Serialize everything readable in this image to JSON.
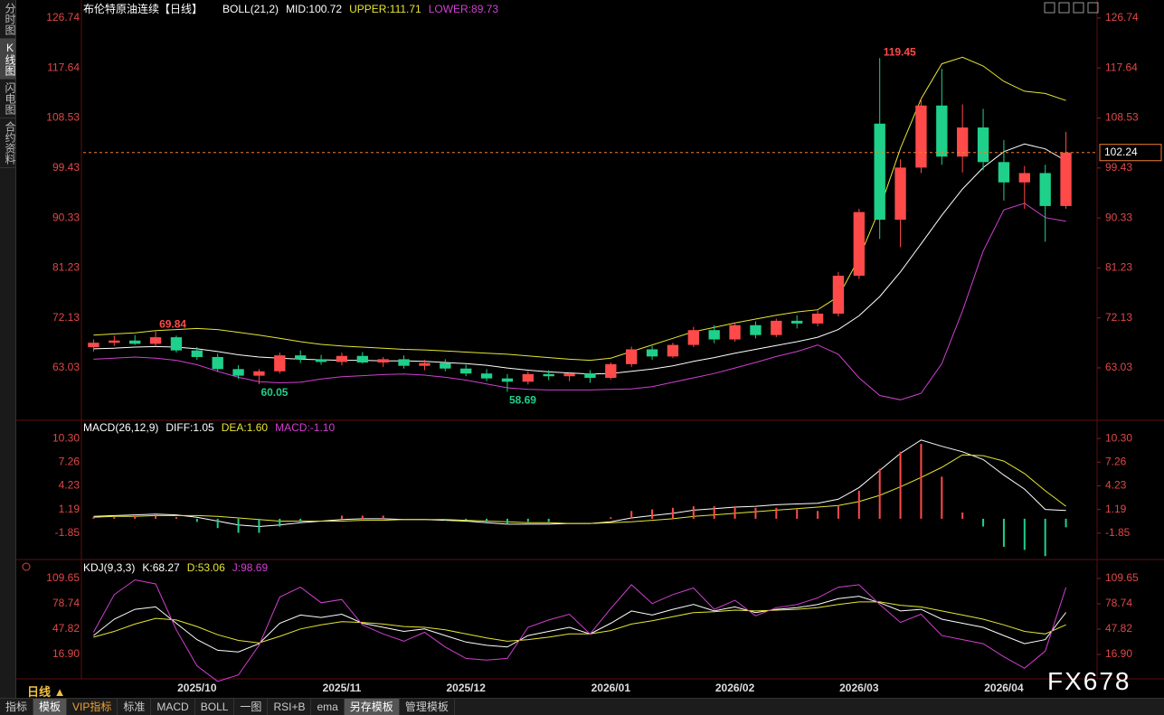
{
  "ui": {
    "side_tabs": [
      "分时图",
      "K线图",
      "闪电图",
      "合约资料"
    ],
    "active_side_tab": 1,
    "period": "日线 ▲",
    "bottom_tabs": [
      "指标",
      "模板",
      "VIP指标",
      "标准",
      "MACD",
      "BOLL",
      "一图",
      "RSI+B",
      "ema",
      "另存模板",
      "管理模板"
    ],
    "active_bottom_tabs": [
      1,
      9
    ],
    "watermark": "FX678"
  },
  "chart_data": [
    {
      "type": "candlestick",
      "title": "布伦特原油连续【日线】",
      "indicator": "BOLL(21,2)",
      "categories": [
        null,
        null,
        null,
        null,
        null,
        "2025/10",
        null,
        null,
        null,
        null,
        null,
        null,
        "2025/11",
        null,
        null,
        null,
        null,
        null,
        "2025/12",
        null,
        null,
        null,
        null,
        null,
        null,
        "2026/01",
        null,
        null,
        null,
        null,
        null,
        "2026/02",
        null,
        null,
        null,
        null,
        null,
        "2026/03",
        null,
        null,
        null,
        null,
        null,
        null,
        "2026/04",
        null,
        null,
        null
      ],
      "open": [
        66.8,
        67.6,
        68.0,
        67.4,
        68.6,
        66.2,
        65.0,
        62.8,
        61.6,
        62.4,
        65.3,
        64.6,
        64.1,
        65.2,
        64.0,
        64.6,
        63.4,
        63.9,
        62.9,
        62.0,
        61.1,
        60.5,
        61.9,
        61.5,
        62.0,
        61.2,
        63.7,
        66.4,
        65.1,
        67.2,
        69.9,
        68.2,
        70.8,
        69.0,
        71.6,
        71.1,
        72.9,
        79.8,
        107.5,
        90.0,
        99.5,
        110.8,
        101.5,
        106.8,
        100.5,
        96.8,
        98.5,
        92.5
      ],
      "high": [
        68.2,
        68.9,
        69.0,
        69.84,
        68.9,
        66.8,
        65.6,
        63.5,
        62.8,
        65.8,
        66.2,
        65.4,
        65.8,
        65.9,
        65.0,
        65.3,
        64.5,
        64.6,
        63.6,
        62.8,
        61.9,
        62.4,
        62.6,
        62.3,
        62.6,
        64.0,
        66.9,
        67.0,
        67.6,
        70.5,
        70.8,
        71.3,
        71.5,
        72.0,
        72.6,
        73.5,
        80.5,
        92.0,
        119.45,
        101.0,
        112.0,
        117.5,
        111.0,
        110.2,
        104.5,
        99.8,
        100.0,
        106.0
      ],
      "low": [
        66.0,
        67.0,
        67.2,
        66.9,
        65.8,
        64.5,
        62.3,
        61.0,
        60.05,
        62.0,
        63.9,
        63.6,
        63.5,
        63.8,
        63.2,
        62.9,
        62.6,
        62.4,
        61.5,
        60.6,
        58.69,
        60.0,
        60.8,
        60.6,
        60.3,
        60.9,
        63.2,
        64.5,
        64.8,
        66.8,
        67.5,
        67.8,
        68.4,
        68.6,
        70.2,
        70.6,
        72.4,
        79.2,
        86.5,
        85.0,
        98.5,
        100.0,
        98.6,
        99.0,
        93.5,
        92.0,
        86.0,
        92.0
      ],
      "close": [
        67.6,
        68.0,
        67.4,
        68.6,
        66.2,
        65.0,
        62.8,
        61.6,
        62.4,
        65.3,
        64.6,
        64.1,
        65.2,
        64.0,
        64.6,
        63.4,
        63.9,
        62.9,
        62.0,
        61.1,
        60.5,
        61.9,
        61.5,
        62.0,
        61.2,
        63.7,
        66.4,
        65.1,
        67.2,
        69.9,
        68.2,
        70.8,
        69.0,
        71.6,
        71.1,
        72.9,
        79.8,
        91.4,
        90.0,
        99.5,
        110.8,
        101.5,
        106.8,
        100.5,
        96.8,
        98.5,
        92.5,
        102.24
      ],
      "colors": {
        "up": "#ff4a4a",
        "down": "#1fd08a"
      },
      "series": [
        {
          "name": "MID:100.72",
          "color": "#ffffff",
          "values": [
            66.5,
            66.6,
            66.8,
            66.9,
            66.8,
            66.5,
            66.0,
            65.4,
            65.0,
            64.8,
            64.6,
            64.5,
            64.4,
            64.4,
            64.3,
            64.3,
            64.2,
            64.0,
            63.8,
            63.5,
            63.0,
            62.6,
            62.3,
            62.1,
            61.9,
            62.0,
            62.4,
            62.8,
            63.4,
            64.2,
            64.9,
            65.7,
            66.4,
            67.1,
            67.8,
            68.6,
            70.0,
            72.5,
            76.0,
            80.5,
            85.6,
            90.8,
            95.6,
            99.5,
            102.4,
            103.8,
            102.9,
            100.72
          ]
        },
        {
          "name": "UPPER:111.71",
          "color": "#e6e632",
          "values": [
            69.0,
            69.2,
            69.4,
            69.8,
            70.0,
            70.2,
            70.0,
            69.5,
            69.0,
            68.4,
            67.8,
            67.3,
            67.0,
            66.8,
            66.6,
            66.4,
            66.3,
            66.1,
            65.9,
            65.7,
            65.5,
            65.2,
            64.9,
            64.6,
            64.4,
            64.8,
            66.0,
            67.2,
            68.4,
            69.6,
            70.4,
            71.2,
            71.9,
            72.6,
            73.2,
            73.6,
            76.0,
            83.0,
            92.0,
            103.0,
            112.0,
            118.4,
            119.6,
            118.0,
            115.2,
            113.4,
            113.0,
            111.71
          ]
        },
        {
          "name": "LOWER:89.73",
          "color": "#d040d0",
          "values": [
            64.6,
            64.8,
            65.0,
            64.8,
            64.4,
            63.6,
            62.4,
            61.3,
            60.5,
            60.3,
            60.4,
            61.0,
            61.4,
            61.6,
            61.8,
            61.9,
            61.7,
            61.3,
            60.8,
            60.1,
            59.4,
            59.1,
            59.0,
            59.0,
            59.0,
            59.1,
            59.2,
            59.6,
            60.4,
            61.2,
            62.0,
            63.0,
            64.0,
            65.1,
            66.0,
            67.2,
            65.5,
            61.2,
            58.0,
            57.2,
            58.4,
            63.8,
            73.4,
            84.3,
            91.8,
            93.0,
            90.4,
            89.73
          ]
        }
      ],
      "labeled_highs": [
        3,
        38
      ],
      "labeled_lows": [
        8,
        20
      ],
      "last_price_line": true,
      "ylim": [
        53.8,
        128.7
      ],
      "yticks": [
        63.03,
        72.13,
        81.23,
        90.33,
        99.43,
        108.53,
        117.64,
        126.74
      ],
      "grid": false
    },
    {
      "type": "line",
      "title": "MACD(26,12,9)",
      "colors": {
        "up": "#ff4a4a",
        "down": "#1fd08a"
      },
      "series": [
        {
          "name": "DIFF:1.05",
          "color": "#ffffff",
          "values": [
            0.3,
            0.4,
            0.5,
            0.6,
            0.5,
            0.2,
            -0.3,
            -0.8,
            -1.0,
            -0.8,
            -0.5,
            -0.3,
            -0.1,
            0.0,
            0.0,
            -0.1,
            -0.1,
            -0.2,
            -0.3,
            -0.5,
            -0.7,
            -0.7,
            -0.7,
            -0.6,
            -0.6,
            -0.4,
            0.1,
            0.4,
            0.7,
            1.1,
            1.3,
            1.5,
            1.6,
            1.8,
            1.9,
            2.0,
            2.5,
            4.0,
            6.2,
            8.4,
            10.1,
            9.3,
            8.6,
            7.6,
            5.6,
            3.8,
            1.2,
            1.05
          ]
        },
        {
          "name": "DEA:1.60",
          "color": "#e6e632",
          "values": [
            0.2,
            0.3,
            0.3,
            0.4,
            0.4,
            0.4,
            0.3,
            0.1,
            -0.1,
            -0.3,
            -0.3,
            -0.3,
            -0.3,
            -0.2,
            -0.2,
            -0.1,
            -0.1,
            -0.1,
            -0.2,
            -0.3,
            -0.4,
            -0.5,
            -0.5,
            -0.6,
            -0.6,
            -0.5,
            -0.4,
            -0.2,
            0.0,
            0.3,
            0.5,
            0.7,
            0.9,
            1.1,
            1.3,
            1.5,
            1.7,
            2.2,
            3.0,
            4.1,
            5.3,
            6.6,
            8.2,
            8.1,
            7.4,
            5.8,
            3.6,
            1.6
          ]
        },
        {
          "name": "MACD:-1.10",
          "color": "#d040d0",
          "type": "bar",
          "values": [
            0.2,
            0.2,
            0.4,
            0.4,
            0.2,
            -0.4,
            -1.2,
            -1.8,
            -1.8,
            -1.0,
            -0.4,
            0,
            0.4,
            0.4,
            0.4,
            0,
            0,
            -0.2,
            -0.2,
            -0.4,
            -0.6,
            -0.4,
            -0.4,
            0,
            0,
            0.2,
            1.0,
            1.2,
            1.4,
            1.6,
            1.6,
            1.6,
            1.4,
            1.4,
            1.2,
            1.0,
            1.6,
            3.6,
            6.4,
            8.6,
            9.6,
            5.4,
            0.8,
            -1.0,
            -3.6,
            -4.0,
            -4.8,
            -1.1
          ]
        }
      ],
      "ylim": [
        -5.0,
        12.4
      ],
      "yticks": [
        {
          "value": -1.85,
          "label": "-1.85"
        },
        1.19,
        4.23,
        7.26,
        {
          "value": 10.3,
          "label": "10.30"
        }
      ],
      "grid": false
    },
    {
      "type": "line",
      "title": "KDJ(9,3,3)",
      "series": [
        {
          "name": "K:68.27",
          "color": "#ffffff",
          "values": [
            40,
            60,
            72,
            75,
            55,
            35,
            22,
            20,
            30,
            55,
            65,
            62,
            66,
            55,
            50,
            45,
            48,
            40,
            32,
            28,
            26,
            40,
            45,
            50,
            42,
            55,
            70,
            65,
            72,
            78,
            70,
            75,
            68,
            72,
            74,
            78,
            85,
            88,
            80,
            70,
            72,
            60,
            55,
            50,
            40,
            30,
            35,
            68.27
          ]
        },
        {
          "name": "D:53.06",
          "color": "#e6e632",
          "values": [
            38,
            45,
            54,
            61,
            59,
            51,
            41,
            34,
            31,
            39,
            48,
            53,
            57,
            56,
            54,
            51,
            50,
            47,
            42,
            37,
            33,
            35,
            38,
            42,
            42,
            46,
            54,
            58,
            63,
            68,
            69,
            71,
            70,
            71,
            72,
            74,
            78,
            81,
            81,
            77,
            75,
            70,
            65,
            60,
            53,
            45,
            42,
            53.06
          ]
        },
        {
          "name": "J:98.69",
          "color": "#d040d0",
          "values": [
            44,
            90,
            108,
            103,
            47,
            3,
            -16,
            -8,
            28,
            87,
            99,
            80,
            84,
            53,
            42,
            33,
            44,
            26,
            12,
            10,
            12,
            50,
            59,
            66,
            42,
            73,
            102,
            79,
            90,
            98,
            72,
            83,
            64,
            74,
            78,
            86,
            99,
            102,
            78,
            56,
            66,
            40,
            35,
            30,
            14,
            0,
            21,
            98.69
          ]
        }
      ],
      "ylim": [
        -11.8,
        129.5
      ],
      "yticks": [
        {
          "value": 16.9,
          "label": "16.90"
        },
        47.82,
        78.74,
        109.65
      ],
      "grid": false
    }
  ]
}
